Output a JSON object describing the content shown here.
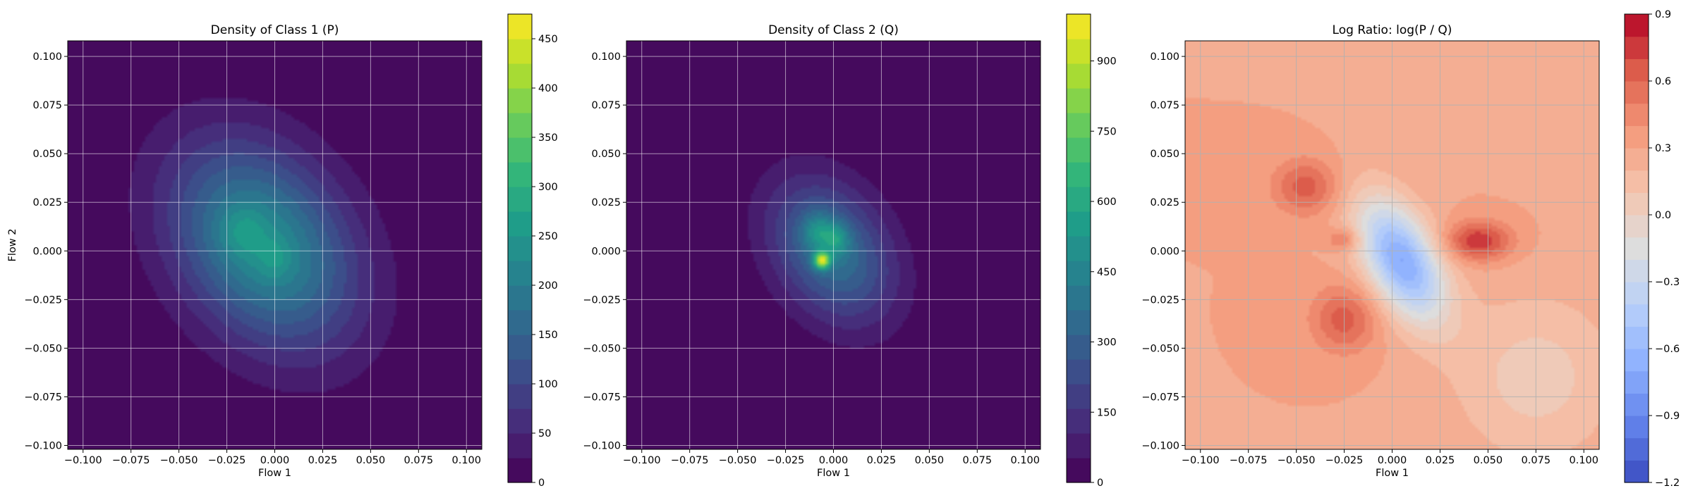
{
  "chart_data": [
    {
      "type": "heatmap",
      "title": "Density of Class 1 (P)",
      "xlabel": "Flow 1",
      "ylabel": "Flow 2",
      "xlim": [
        -0.108,
        0.108
      ],
      "ylim": [
        -0.102,
        0.108
      ],
      "xticks": [
        "−0.100",
        "−0.075",
        "−0.050",
        "−0.025",
        "0.000",
        "0.025",
        "0.050",
        "0.075",
        "0.100"
      ],
      "xtick_values": [
        -0.1,
        -0.075,
        -0.05,
        -0.025,
        0,
        0.025,
        0.05,
        0.075,
        0.1
      ],
      "yticks": [
        "0.100",
        "0.075",
        "0.050",
        "0.025",
        "0.000",
        "−0.025",
        "−0.050",
        "−0.075",
        "−0.100"
      ],
      "ytick_values": [
        0.1,
        0.075,
        0.05,
        0.025,
        0,
        -0.025,
        -0.05,
        -0.075,
        -0.1
      ],
      "grid": true,
      "colormap": "viridis",
      "colorbar": {
        "min": 0,
        "max": 475,
        "ticks": [
          0,
          50,
          100,
          150,
          200,
          250,
          300,
          350,
          400,
          450
        ],
        "tick_labels": [
          "0",
          "50",
          "100",
          "150",
          "200",
          "250",
          "300",
          "350",
          "400",
          "450"
        ]
      },
      "blobs": [
        {
          "cx": -0.006,
          "cy": 0.003,
          "sx": 0.033,
          "sy": 0.036,
          "rho": -0.3,
          "amp": 235
        },
        {
          "cx": -0.017,
          "cy": 0.01,
          "sx": 0.008,
          "sy": 0.009,
          "rho": 0.0,
          "amp": 45
        },
        {
          "cx": 0.0,
          "cy": -0.004,
          "sx": 0.006,
          "sy": 0.007,
          "rho": 0.0,
          "amp": 35
        }
      ]
    },
    {
      "type": "heatmap",
      "title": "Density of Class 2 (Q)",
      "xlabel": "Flow 1",
      "ylabel": "",
      "xlim": [
        -0.108,
        0.108
      ],
      "ylim": [
        -0.102,
        0.108
      ],
      "xticks": [
        "−0.100",
        "−0.075",
        "−0.050",
        "−0.025",
        "0.000",
        "0.025",
        "0.050",
        "0.075",
        "0.100"
      ],
      "xtick_values": [
        -0.1,
        -0.075,
        -0.05,
        -0.025,
        0,
        0.025,
        0.05,
        0.075,
        0.1
      ],
      "yticks": [
        "0.100",
        "0.075",
        "0.050",
        "0.025",
        "0.000",
        "−0.025",
        "−0.050",
        "−0.075",
        "−0.100"
      ],
      "ytick_values": [
        0.1,
        0.075,
        0.05,
        0.025,
        0,
        -0.025,
        -0.05,
        -0.075,
        -0.1
      ],
      "grid": true,
      "colormap": "viridis",
      "colorbar": {
        "min": 0,
        "max": 1000,
        "ticks": [
          0,
          150,
          300,
          450,
          600,
          750,
          900
        ],
        "tick_labels": [
          "0",
          "150",
          "300",
          "450",
          "600",
          "750",
          "900"
        ]
      },
      "blobs": [
        {
          "cx": -0.001,
          "cy": 0.0,
          "sx": 0.022,
          "sy": 0.025,
          "rho": -0.3,
          "amp": 380
        },
        {
          "cx": -0.006,
          "cy": -0.005,
          "sx": 0.003,
          "sy": 0.003,
          "rho": 0.0,
          "amp": 600
        },
        {
          "cx": -0.008,
          "cy": 0.01,
          "sx": 0.006,
          "sy": 0.007,
          "rho": 0.0,
          "amp": 200
        },
        {
          "cx": 0.002,
          "cy": 0.006,
          "sx": 0.005,
          "sy": 0.006,
          "rho": 0.0,
          "amp": 180
        }
      ]
    },
    {
      "type": "heatmap",
      "title": "Log Ratio: log(P / Q)",
      "xlabel": "Flow 1",
      "ylabel": "",
      "xlim": [
        -0.108,
        0.108
      ],
      "ylim": [
        -0.102,
        0.108
      ],
      "xticks": [
        "−0.100",
        "−0.075",
        "−0.050",
        "−0.025",
        "0.000",
        "0.025",
        "0.050",
        "0.075",
        "0.100"
      ],
      "xtick_values": [
        -0.1,
        -0.075,
        -0.05,
        -0.025,
        0,
        0.025,
        0.05,
        0.075,
        0.1
      ],
      "yticks": [
        "0.100",
        "0.075",
        "0.050",
        "0.025",
        "0.000",
        "−0.025",
        "−0.050",
        "−0.075",
        "−0.100"
      ],
      "ytick_values": [
        0.1,
        0.075,
        0.05,
        0.025,
        0,
        -0.025,
        -0.05,
        -0.075,
        -0.1
      ],
      "grid": true,
      "colormap": "coolwarm",
      "colorbar": {
        "min": -1.2,
        "max": 0.9,
        "ticks": [
          -1.2,
          -0.9,
          -0.6,
          -0.3,
          0.0,
          0.3,
          0.6,
          0.9
        ],
        "tick_labels": [
          "−1.2",
          "−0.9",
          "−0.6",
          "−0.3",
          "0.0",
          "0.3",
          "0.6",
          "0.9"
        ]
      },
      "baseline": 0.3,
      "blobs": [
        {
          "cx": 0.005,
          "cy": -0.005,
          "sx": 0.016,
          "sy": 0.022,
          "rho": -0.5,
          "amp": -1.0
        },
        {
          "cx": 0.045,
          "cy": 0.005,
          "sx": 0.012,
          "sy": 0.007,
          "rho": 0.0,
          "amp": 0.5
        },
        {
          "cx": -0.045,
          "cy": 0.033,
          "sx": 0.012,
          "sy": 0.01,
          "rho": 0.0,
          "amp": 0.35
        },
        {
          "cx": -0.025,
          "cy": 0.006,
          "sx": 0.006,
          "sy": 0.004,
          "rho": 0.0,
          "amp": 0.3
        },
        {
          "cx": -0.025,
          "cy": -0.035,
          "sx": 0.012,
          "sy": 0.012,
          "rho": 0.0,
          "amp": 0.35
        },
        {
          "cx": 0.075,
          "cy": -0.065,
          "sx": 0.03,
          "sy": 0.03,
          "rho": 0.0,
          "amp": -0.25
        }
      ]
    }
  ]
}
